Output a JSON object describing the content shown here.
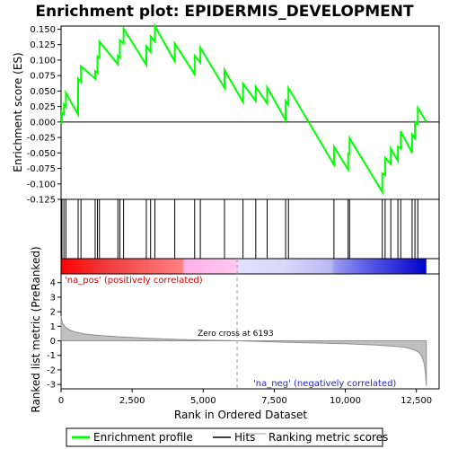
{
  "chart_data": {
    "type": "line",
    "title": "Enrichment plot: EPIDERMIS_DEVELOPMENT",
    "top_panel": {
      "ylabel": "Enrichment score (ES)",
      "ylim": [
        -0.125,
        0.155
      ],
      "yticks": [
        "-0.125",
        "-0.100",
        "-0.075",
        "-0.050",
        "-0.025",
        "0.000",
        "0.025",
        "0.050",
        "0.075",
        "0.100",
        "0.125",
        "0.150"
      ],
      "ytick_values": [
        -0.125,
        -0.1,
        -0.075,
        -0.05,
        -0.025,
        0,
        0.025,
        0.05,
        0.075,
        0.1,
        0.125,
        0.15
      ],
      "series_name": "Enrichment profile",
      "color": "#00ff00",
      "hits": [
        30,
        100,
        170,
        600,
        700,
        1200,
        1280,
        1350,
        2000,
        2070,
        2200,
        3000,
        3150,
        3300,
        4000,
        4700,
        4900,
        5750,
        6400,
        6850,
        7250,
        7900,
        8000,
        9600,
        10100,
        10150,
        11300,
        11400,
        11600,
        11850,
        11950,
        12350,
        12450,
        12550
      ],
      "es_profile": [
        [
          0,
          0.0
        ],
        [
          30,
          -0.003
        ],
        [
          30,
          0.015
        ],
        [
          100,
          0.012
        ],
        [
          100,
          0.028
        ],
        [
          170,
          0.024
        ],
        [
          170,
          0.047
        ],
        [
          600,
          0.012
        ],
        [
          600,
          0.07
        ],
        [
          700,
          0.065
        ],
        [
          700,
          0.09
        ],
        [
          1200,
          0.07
        ],
        [
          1200,
          0.082
        ],
        [
          1280,
          0.079
        ],
        [
          1280,
          0.106
        ],
        [
          1350,
          0.104
        ],
        [
          1350,
          0.13
        ],
        [
          2000,
          0.093
        ],
        [
          2000,
          0.107
        ],
        [
          2070,
          0.104
        ],
        [
          2070,
          0.132
        ],
        [
          2200,
          0.127
        ],
        [
          2200,
          0.151
        ],
        [
          3000,
          0.092
        ],
        [
          3000,
          0.122
        ],
        [
          3150,
          0.113
        ],
        [
          3150,
          0.138
        ],
        [
          3300,
          0.13
        ],
        [
          3300,
          0.155
        ],
        [
          4000,
          0.098
        ],
        [
          4000,
          0.127
        ],
        [
          4700,
          0.077
        ],
        [
          4700,
          0.107
        ],
        [
          4900,
          0.096
        ],
        [
          4900,
          0.12
        ],
        [
          5750,
          0.055
        ],
        [
          5750,
          0.084
        ],
        [
          6400,
          0.032
        ],
        [
          6400,
          0.062
        ],
        [
          6850,
          0.034
        ],
        [
          6850,
          0.057
        ],
        [
          7250,
          0.03
        ],
        [
          7250,
          0.056
        ],
        [
          7900,
          0.003
        ],
        [
          7900,
          0.034
        ],
        [
          8000,
          0.028
        ],
        [
          8000,
          0.055
        ],
        [
          9600,
          -0.069
        ],
        [
          9600,
          -0.04
        ],
        [
          10100,
          -0.077
        ],
        [
          10100,
          -0.051
        ],
        [
          10150,
          -0.052
        ],
        [
          10150,
          -0.026
        ],
        [
          11300,
          -0.113
        ],
        [
          11300,
          -0.083
        ],
        [
          11400,
          -0.086
        ],
        [
          11400,
          -0.058
        ],
        [
          11600,
          -0.068
        ],
        [
          11600,
          -0.043
        ],
        [
          11850,
          -0.063
        ],
        [
          11850,
          -0.04
        ],
        [
          11950,
          -0.043
        ],
        [
          11950,
          -0.015
        ],
        [
          12350,
          -0.05
        ],
        [
          12350,
          -0.02
        ],
        [
          12450,
          -0.026
        ],
        [
          12450,
          0.0
        ],
        [
          12550,
          -0.004
        ],
        [
          12550,
          0.023
        ],
        [
          12850,
          0.0
        ]
      ]
    },
    "bottom_panel": {
      "ylabel": "Ranked list metric (PreRanked)",
      "ylim": [
        -3.3,
        4.6
      ],
      "yticks": [
        "-3",
        "-2",
        "-1",
        "0",
        "1",
        "2",
        "3",
        "4"
      ],
      "ytick_values": [
        -3,
        -2,
        -1,
        0,
        1,
        2,
        3,
        4
      ],
      "metric_curve": [
        [
          0,
          1.7
        ],
        [
          50,
          1.2
        ],
        [
          150,
          0.95
        ],
        [
          300,
          0.75
        ],
        [
          500,
          0.6
        ],
        [
          800,
          0.48
        ],
        [
          1200,
          0.4
        ],
        [
          2000,
          0.28
        ],
        [
          3000,
          0.18
        ],
        [
          4000,
          0.1
        ],
        [
          5000,
          0.05
        ],
        [
          6193,
          0.0
        ],
        [
          7000,
          -0.05
        ],
        [
          8000,
          -0.1
        ],
        [
          9000,
          -0.15
        ],
        [
          10000,
          -0.2
        ],
        [
          11000,
          -0.28
        ],
        [
          11600,
          -0.35
        ],
        [
          12100,
          -0.45
        ],
        [
          12400,
          -0.6
        ],
        [
          12600,
          -0.8
        ],
        [
          12700,
          -1.1
        ],
        [
          12780,
          -1.6
        ],
        [
          12820,
          -2.2
        ],
        [
          12850,
          -3.1
        ]
      ],
      "zero_cross_label": "Zero cross at 6193",
      "zero_cross_rank": 6193,
      "pos_label": "'na_pos' (positively correlated)",
      "neg_label": "'na_neg' (negatively correlated)"
    },
    "xlabel": "Rank in Ordered Dataset",
    "xlim": [
      0,
      13300
    ],
    "xticks": [
      "0",
      "2,500",
      "5,000",
      "7,500",
      "10,000",
      "12,500"
    ],
    "xtick_values": [
      0,
      2500,
      5000,
      7500,
      10000,
      12500
    ],
    "n_genes": 12850,
    "legend": {
      "placement": "bottom",
      "items": [
        {
          "label": "Enrichment profile",
          "color": "#00ff00"
        },
        {
          "label": "Hits",
          "color": "#000000"
        },
        {
          "label": "Ranking metric scores",
          "color": "#c0c0c0"
        }
      ]
    }
  }
}
